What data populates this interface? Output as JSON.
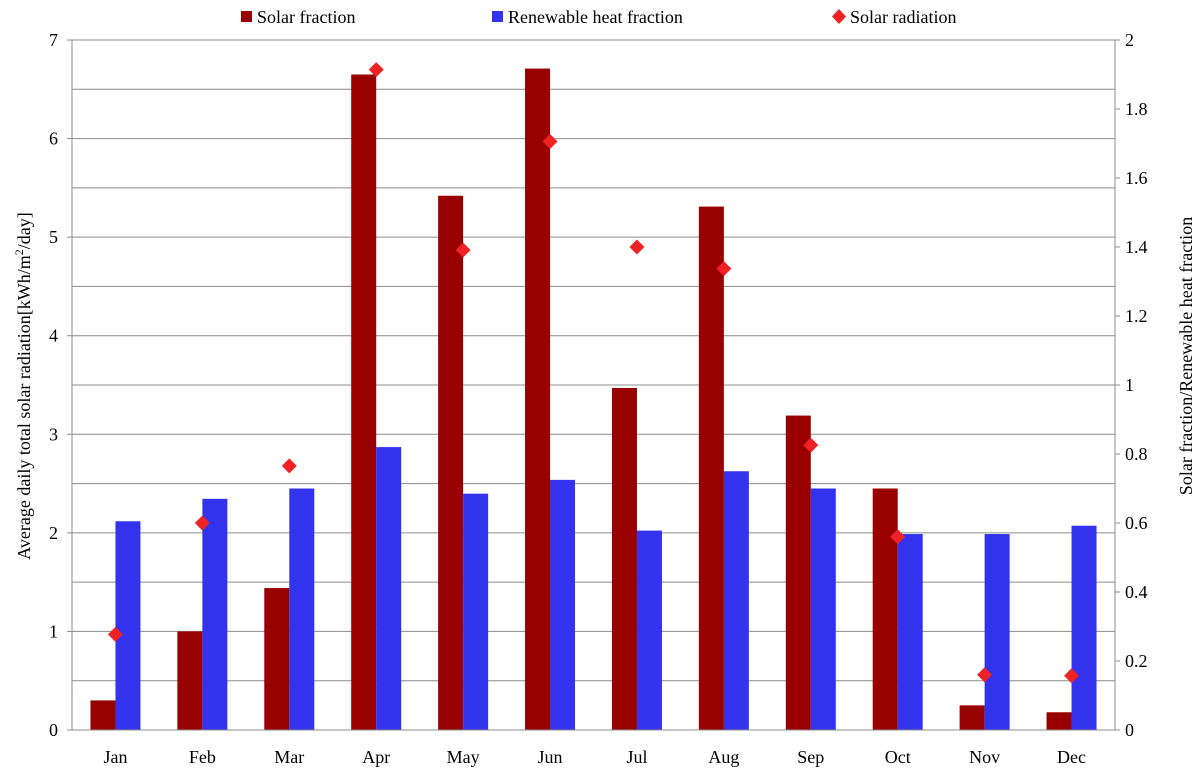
{
  "chart_data": {
    "type": "bar",
    "categories": [
      "Jan",
      "Feb",
      "Mar",
      "Apr",
      "May",
      "Jun",
      "Jul",
      "Aug",
      "Sep",
      "Oct",
      "Nov",
      "Dec"
    ],
    "series": [
      {
        "name": "Solar fraction",
        "type": "bar",
        "axis": "left",
        "color": "#990000",
        "values": [
          0.3,
          1.0,
          1.44,
          6.65,
          5.42,
          6.71,
          3.47,
          5.31,
          3.19,
          2.45,
          0.25,
          0.18
        ]
      },
      {
        "name": "Renewable heat fraction",
        "type": "bar",
        "axis": "right",
        "color": "#3333EE",
        "values": [
          0.605,
          0.67,
          0.7,
          0.82,
          0.685,
          0.725,
          0.578,
          0.75,
          0.7,
          0.568,
          0.568,
          0.592
        ]
      },
      {
        "name": "Solar radiation",
        "type": "scatter",
        "axis": "left",
        "marker": "diamond",
        "color": "#EE2222",
        "values": [
          0.97,
          2.1,
          2.68,
          6.7,
          4.87,
          5.97,
          4.9,
          4.68,
          2.89,
          1.96,
          0.56,
          0.55
        ]
      }
    ],
    "ylabel": "Average daily total solar radiation[kWh/m²/day]",
    "ylabel_parts": {
      "before": "Average daily total solar radiation[kWh/m",
      "sup": "2",
      "after": "/day]"
    },
    "y2label": "Solar fraction/Renewable heat fraction",
    "ylim": [
      0,
      7
    ],
    "y2lim": [
      0,
      2
    ],
    "yticks": [
      "0",
      "1",
      "2",
      "3",
      "4",
      "5",
      "6",
      "7"
    ],
    "y2ticks": [
      "0",
      "0.2",
      "0.4",
      "0.6",
      "0.8",
      "1",
      "1.2",
      "1.4",
      "1.6",
      "1.8",
      "2"
    ],
    "grid": true,
    "legend_position": "top"
  }
}
